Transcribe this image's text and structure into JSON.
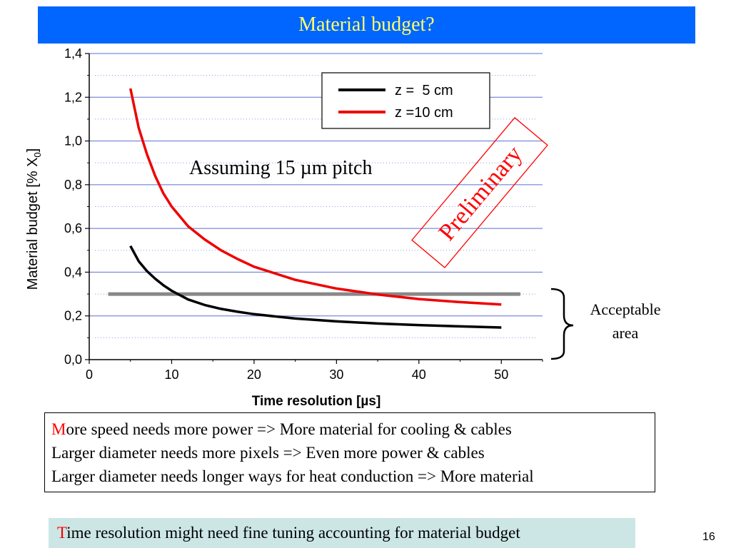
{
  "slide": {
    "title": "Material budget?",
    "page_number": "16",
    "accent_color": "#ff0000",
    "title_bar_color": "#0066ff",
    "title_text_color": "#ffff66"
  },
  "annotations": {
    "pitch_note": "Assuming 15 µm pitch",
    "stamp": "Preliminary",
    "acceptable_area": [
      "Acceptable",
      "area"
    ]
  },
  "bullets": [
    {
      "first_letter": "M",
      "rest": "ore speed needs more power => More material for cooling & cables"
    },
    {
      "first_letter": "",
      "rest": "Larger diameter needs more pixels => Even more power & cables"
    },
    {
      "first_letter": "",
      "rest": "Larger diameter needs longer ways for heat conduction => More material"
    }
  ],
  "footer_note": {
    "first_letter": "T",
    "rest": "ime resolution might need fine tuning accounting for material budget"
  },
  "chart_data": {
    "type": "line",
    "title": "",
    "xlabel": "Time resolution [µs]",
    "ylabel": "Material budget [% X",
    "ylabel_subscript": "0",
    "ylabel_suffix": "]",
    "xlim": [
      0,
      55
    ],
    "ylim": [
      0,
      1.4
    ],
    "x_ticks": [
      0,
      10,
      20,
      30,
      40,
      50
    ],
    "x_tick_labels": [
      "0",
      "10",
      "20",
      "30",
      "40",
      "50"
    ],
    "y_ticks": [
      0,
      0.2,
      0.4,
      0.6,
      0.8,
      1.0,
      1.2,
      1.4
    ],
    "y_tick_labels": [
      "0,0",
      "0,2",
      "0,4",
      "0,6",
      "0,8",
      "1,0",
      "1,2",
      "1,4"
    ],
    "grid": "horizontal",
    "legend_position": "top-right",
    "threshold": {
      "y": 0.3,
      "x_range": [
        2.3,
        52.3
      ],
      "color": "#888888"
    },
    "series": [
      {
        "name": "z =  5 cm",
        "color": "#000000",
        "x": [
          5,
          6,
          7,
          8,
          9,
          10,
          12,
          14,
          16,
          18,
          20,
          25,
          30,
          35,
          40,
          45,
          50
        ],
        "y": [
          0.52,
          0.45,
          0.405,
          0.37,
          0.34,
          0.315,
          0.275,
          0.25,
          0.232,
          0.219,
          0.208,
          0.188,
          0.175,
          0.165,
          0.158,
          0.152,
          0.147
        ]
      },
      {
        "name": "z =10 cm",
        "color": "#ee0000",
        "x": [
          5,
          6,
          7,
          8,
          9,
          10,
          12,
          14,
          16,
          18,
          20,
          25,
          30,
          35,
          40,
          45,
          50
        ],
        "y": [
          1.24,
          1.06,
          0.94,
          0.84,
          0.76,
          0.7,
          0.61,
          0.55,
          0.5,
          0.46,
          0.425,
          0.365,
          0.325,
          0.298,
          0.277,
          0.263,
          0.252
        ]
      }
    ]
  }
}
